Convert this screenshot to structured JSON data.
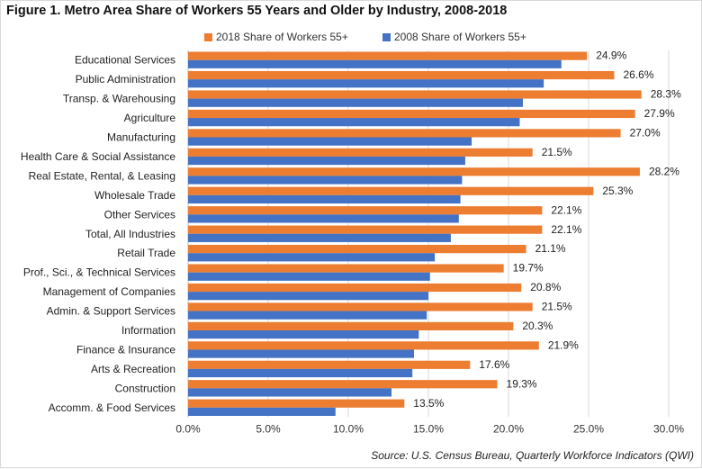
{
  "title": "Figure 1. Metro Area Share of Workers 55 Years and Older by Industry, 2008-2018",
  "source": "Source: U.S. Census Bureau, Quarterly Workforce Indicators (QWI)",
  "colors": {
    "series_2018": "#ED7D31",
    "series_2008": "#4472C4",
    "gridline": "#d9d9d9"
  },
  "chart_data": {
    "type": "bar",
    "orientation": "horizontal",
    "categories": [
      "Educational Services",
      "Public Administration",
      "Transp. & Warehousing",
      "Agriculture",
      "Manufacturing",
      "Health Care & Social Assistance",
      "Real Estate, Rental, & Leasing",
      "Wholesale Trade",
      "Other Services",
      "Total, All Industries",
      "Retail Trade",
      "Prof., Sci., & Technical Services",
      "Management of Companies",
      "Admin. & Support Services",
      "Information",
      "Finance & Insurance",
      "Arts & Recreation",
      "Construction",
      "Accomm. & Food Services"
    ],
    "series": [
      {
        "name": "2018 Share of Workers 55+",
        "values": [
          24.9,
          26.6,
          28.3,
          27.9,
          27.0,
          21.5,
          28.2,
          25.3,
          22.1,
          22.1,
          21.1,
          19.7,
          20.8,
          21.5,
          20.3,
          21.9,
          17.6,
          19.3,
          13.5
        ],
        "data_labels": [
          "24.9%",
          "26.6%",
          "28.3%",
          "27.9%",
          "27.0%",
          "21.5%",
          "28.2%",
          "25.3%",
          "22.1%",
          "22.1%",
          "21.1%",
          "19.7%",
          "20.8%",
          "21.5%",
          "20.3%",
          "21.9%",
          "17.6%",
          "19.3%",
          "13.5%"
        ]
      },
      {
        "name": "2008 Share of Workers 55+",
        "values": [
          23.3,
          22.2,
          20.9,
          20.7,
          17.7,
          17.3,
          17.1,
          17.0,
          16.9,
          16.4,
          15.4,
          15.1,
          15.0,
          14.9,
          14.4,
          14.1,
          14.0,
          12.7,
          9.2
        ]
      }
    ],
    "xlim": [
      0,
      30
    ],
    "xticks": [
      "0.0%",
      "5.0%",
      "10.0%",
      "15.0%",
      "20.0%",
      "25.0%",
      "30.0%"
    ],
    "grid": "vertical",
    "legend_position": "top"
  }
}
